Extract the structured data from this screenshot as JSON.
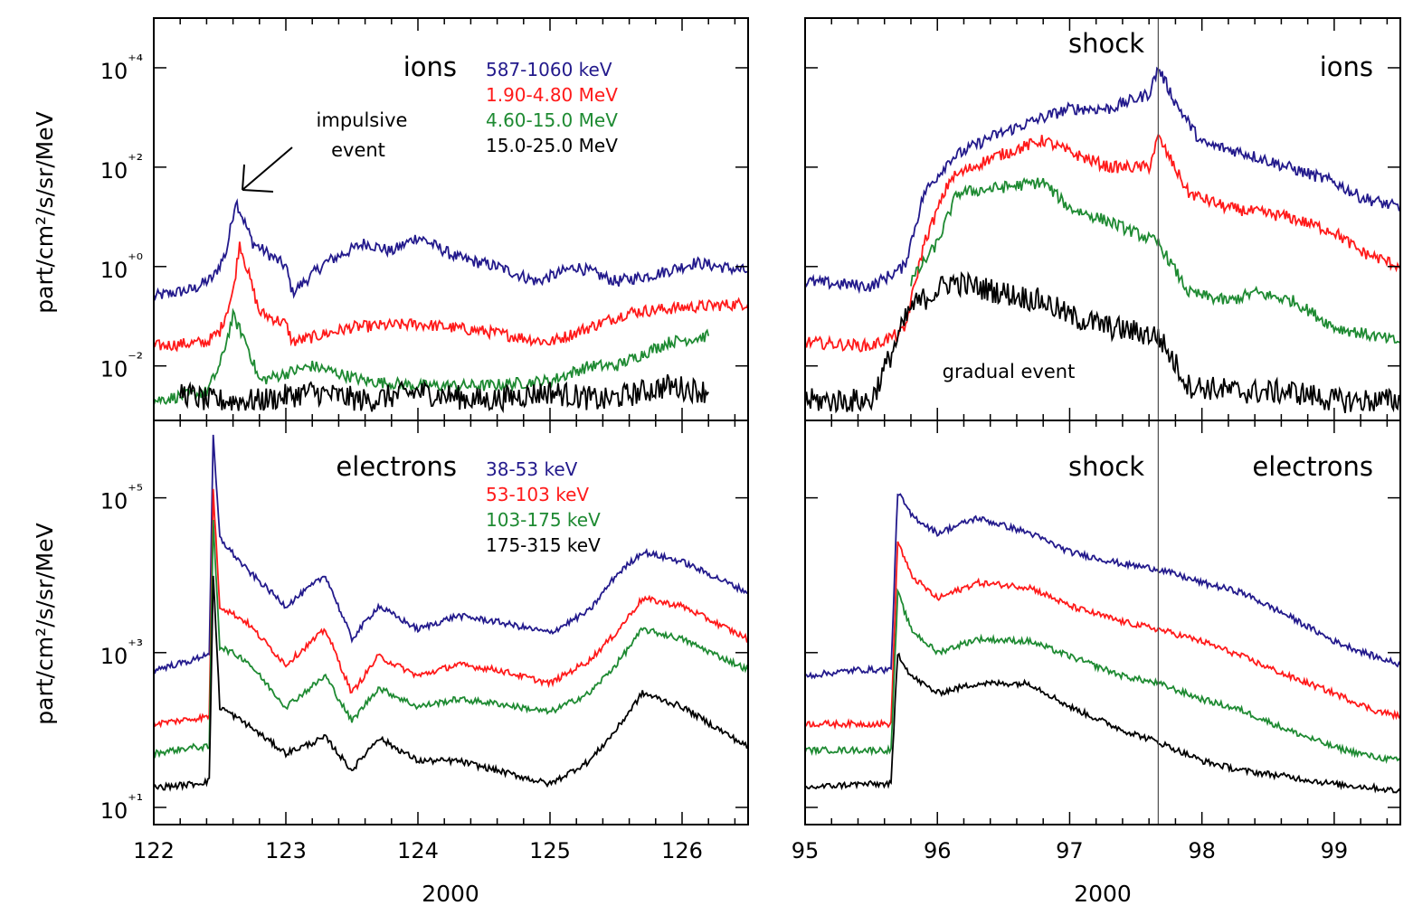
{
  "figure": {
    "y_label": "part/cm²/s/sr/MeV",
    "x_label": "2000"
  },
  "colors": {
    "blue": "#231a8c",
    "red": "#ff1a1a",
    "green": "#1e8a32",
    "black": "#000000"
  },
  "chart_data": [
    {
      "id": "left-ions",
      "type": "line",
      "title": "ions",
      "ylabel": "part/cm²/s/sr/MeV",
      "xlabel": "2000",
      "yscale": "log",
      "xlim": [
        122,
        126.5
      ],
      "ylim": [
        0.0008,
        100000
      ],
      "xticks": [
        122,
        123,
        124,
        125,
        126
      ],
      "yticks": [
        0.01,
        1,
        100,
        10000
      ],
      "ytick_labels": [
        "10⁻²",
        "10⁺⁰",
        "10⁺²",
        "10⁺⁴"
      ],
      "legend": [
        "587-1060 keV",
        "1.90-4.80 MeV",
        "4.60-15.0 MeV",
        "15.0-25.0 MeV"
      ],
      "annotations": [
        {
          "text": "impulsive",
          "x": 122.45,
          "y": 22
        },
        {
          "text": "event",
          "x": 122.45,
          "y": 22
        }
      ],
      "series": [
        {
          "name": "587-1060 keV",
          "color": "blue",
          "x": [
            122,
            122.3,
            122.45,
            122.55,
            122.62,
            122.75,
            123.0,
            123.05,
            123.3,
            123.6,
            123.8,
            124.0,
            124.3,
            124.6,
            124.9,
            125.2,
            125.5,
            125.8,
            126.1,
            126.5
          ],
          "y": [
            0.25,
            0.35,
            0.6,
            2,
            22,
            3,
            1.0,
            0.3,
            1.2,
            3,
            2,
            4,
            1.5,
            1.0,
            0.5,
            1.0,
            0.5,
            0.7,
            1.2,
            0.8
          ]
        },
        {
          "name": "1.90-4.80 MeV",
          "color": "red",
          "x": [
            122,
            122.4,
            122.5,
            122.6,
            122.65,
            122.8,
            123.0,
            123.05,
            123.5,
            124.0,
            124.5,
            125.0,
            125.3,
            125.6,
            126.0,
            126.5
          ],
          "y": [
            0.025,
            0.03,
            0.05,
            0.3,
            3,
            0.12,
            0.07,
            0.03,
            0.06,
            0.07,
            0.05,
            0.03,
            0.06,
            0.12,
            0.15,
            0.18
          ]
        },
        {
          "name": "4.60-15.0 MeV",
          "color": "green",
          "x": [
            122,
            122.4,
            122.5,
            122.6,
            122.7,
            122.8,
            123.2,
            123.6,
            124.0,
            124.5,
            125.0,
            125.3,
            125.5,
            125.9,
            126.2
          ],
          "y": [
            0.002,
            0.003,
            0.01,
            0.1,
            0.03,
            0.005,
            0.01,
            0.005,
            0.004,
            0.004,
            0.005,
            0.01,
            0.01,
            0.03,
            0.04
          ]
        },
        {
          "name": "15.0-25.0 MeV",
          "color": "black",
          "x": [
            122.2,
            122.4,
            122.6,
            122.8,
            123.2,
            123.6,
            124.0,
            124.5,
            125.0,
            125.4,
            125.9,
            126.2
          ],
          "y": [
            0.003,
            0.002,
            0.002,
            0.002,
            0.003,
            0.002,
            0.003,
            0.002,
            0.003,
            0.002,
            0.004,
            0.003
          ]
        }
      ]
    },
    {
      "id": "right-ions",
      "type": "line",
      "title": "ions",
      "xlabel": "2000",
      "yscale": "log",
      "xlim": [
        95,
        99.5
      ],
      "ylim": [
        0.0008,
        100000
      ],
      "xticks": [
        95,
        96,
        97,
        98,
        99
      ],
      "yticks": [
        0.01,
        1,
        100,
        10000
      ],
      "annotations": [
        {
          "text": "shock",
          "x": 97.67
        },
        {
          "text": "gradual event"
        }
      ],
      "shock_x": 97.67,
      "series": [
        {
          "name": "587-1060 keV",
          "color": "blue",
          "x": [
            95,
            95.5,
            95.75,
            95.9,
            96.1,
            96.4,
            96.8,
            97.0,
            97.3,
            97.6,
            97.67,
            97.8,
            98.0,
            98.3,
            98.65,
            99.0,
            99.2,
            99.5
          ],
          "y": [
            0.5,
            0.4,
            1.0,
            30,
            150,
            400,
            1000,
            1500,
            1500,
            3000,
            10000,
            2000,
            300,
            200,
            100,
            50,
            25,
            15
          ]
        },
        {
          "name": "1.90-4.80 MeV",
          "color": "red",
          "x": [
            95,
            95.5,
            95.75,
            95.9,
            96.1,
            96.4,
            96.8,
            97.0,
            97.3,
            97.6,
            97.67,
            97.9,
            98.2,
            98.65,
            99.0,
            99.2,
            99.5
          ],
          "y": [
            0.03,
            0.025,
            0.05,
            3,
            60,
            150,
            350,
            200,
            100,
            100,
            400,
            30,
            15,
            10,
            5,
            2,
            1
          ]
        },
        {
          "name": "4.60-15.0 MeV",
          "color": "green",
          "x": [
            95.8,
            96.0,
            96.15,
            96.8,
            97.0,
            97.3,
            97.67,
            97.9,
            98.2,
            98.4,
            98.7,
            99.0,
            99.3,
            99.5
          ],
          "y": [
            0.5,
            3,
            30,
            50,
            15,
            8,
            3,
            0.3,
            0.2,
            0.3,
            0.2,
            0.06,
            0.04,
            0.03
          ]
        },
        {
          "name": "15.0-25.0 MeV",
          "color": "black",
          "x": [
            95,
            95.5,
            95.8,
            96.1,
            96.8,
            97.0,
            97.3,
            97.67,
            97.9,
            98.3,
            98.7,
            99.0,
            99.3,
            99.5
          ],
          "y": [
            0.002,
            0.002,
            0.15,
            0.5,
            0.2,
            0.1,
            0.06,
            0.04,
            0.004,
            0.003,
            0.003,
            0.002,
            0.002,
            0.002
          ]
        }
      ]
    },
    {
      "id": "left-electrons",
      "type": "line",
      "title": "electrons",
      "ylabel": "part/cm²/s/sr/MeV",
      "xlabel": "2000",
      "yscale": "log",
      "xlim": [
        122,
        126.5
      ],
      "ylim": [
        6,
        1000000
      ],
      "xticks": [
        122,
        123,
        124,
        125,
        126
      ],
      "xtick_labels": [
        "122",
        "123",
        "124",
        "125",
        "126"
      ],
      "yticks": [
        10,
        1000,
        100000
      ],
      "ytick_labels": [
        "10⁺¹",
        "10⁺³",
        "10⁺⁵"
      ],
      "legend": [
        "38-53 keV",
        "53-103 keV",
        "103-175 keV",
        "175-315 keV"
      ],
      "series": [
        {
          "name": "38-53 keV",
          "color": "blue",
          "x": [
            122,
            122.3,
            122.42,
            122.45,
            122.5,
            122.7,
            123.0,
            123.3,
            123.5,
            123.7,
            124.0,
            124.3,
            124.6,
            125.0,
            125.3,
            125.5,
            125.7,
            126.0,
            126.5
          ],
          "y": [
            600,
            800,
            1000,
            600000,
            30000,
            12000,
            4000,
            10000,
            1500,
            4000,
            2000,
            3000,
            2500,
            1800,
            3500,
            10000,
            20000,
            15000,
            6000
          ]
        },
        {
          "name": "53-103 keV",
          "color": "red",
          "x": [
            122,
            122.3,
            122.42,
            122.45,
            122.5,
            122.7,
            123.0,
            123.3,
            123.5,
            123.7,
            124.0,
            124.3,
            124.6,
            125.0,
            125.3,
            125.5,
            125.7,
            126.0,
            126.5
          ],
          "y": [
            120,
            140,
            150,
            120000,
            4000,
            2500,
            700,
            2000,
            300,
            900,
            500,
            700,
            600,
            400,
            800,
            1800,
            5000,
            4000,
            1500
          ]
        },
        {
          "name": "103-175 keV",
          "color": "green",
          "x": [
            122,
            122.3,
            122.42,
            122.45,
            122.5,
            122.7,
            123.0,
            123.3,
            123.5,
            123.7,
            124.0,
            124.3,
            124.6,
            125.0,
            125.3,
            125.5,
            125.7,
            126.0,
            126.5
          ],
          "y": [
            50,
            60,
            60,
            50000,
            1200,
            800,
            200,
            500,
            130,
            350,
            200,
            250,
            220,
            170,
            300,
            700,
            2000,
            1500,
            600
          ]
        },
        {
          "name": "175-315 keV",
          "color": "black",
          "x": [
            122,
            122.3,
            122.42,
            122.45,
            122.5,
            122.7,
            123.0,
            123.3,
            123.5,
            123.7,
            124.0,
            124.3,
            124.6,
            125.0,
            125.3,
            125.5,
            125.7,
            126.0,
            126.5
          ],
          "y": [
            18,
            20,
            22,
            10000,
            200,
            120,
            50,
            80,
            30,
            80,
            40,
            40,
            30,
            20,
            40,
            100,
            300,
            200,
            60
          ]
        }
      ]
    },
    {
      "id": "right-electrons",
      "type": "line",
      "title": "electrons",
      "xlabel": "2000",
      "yscale": "log",
      "xlim": [
        95,
        99.5
      ],
      "ylim": [
        6,
        1000000
      ],
      "xticks": [
        95,
        96,
        97,
        98,
        99
      ],
      "xtick_labels": [
        "95",
        "96",
        "97",
        "98",
        "99"
      ],
      "yticks": [
        10,
        1000,
        100000
      ],
      "annotations": [
        {
          "text": "shock",
          "x": 97.67
        }
      ],
      "shock_x": 97.67,
      "series": [
        {
          "name": "38-53 keV",
          "color": "blue",
          "x": [
            95,
            95.4,
            95.65,
            95.7,
            95.8,
            96.0,
            96.3,
            96.7,
            97.0,
            97.4,
            97.67,
            98.0,
            98.3,
            98.65,
            99.0,
            99.3,
            99.5
          ],
          "y": [
            500,
            600,
            600,
            120000,
            60000,
            35000,
            55000,
            35000,
            20000,
            14000,
            12000,
            8000,
            6000,
            3000,
            1400,
            900,
            700
          ]
        },
        {
          "name": "53-103 keV",
          "color": "red",
          "x": [
            95,
            95.4,
            95.65,
            95.7,
            95.8,
            96.0,
            96.3,
            96.7,
            97.0,
            97.4,
            97.67,
            98.0,
            98.3,
            98.65,
            99.0,
            99.3,
            99.5
          ],
          "y": [
            120,
            120,
            120,
            28000,
            10000,
            5000,
            8000,
            7000,
            4000,
            2500,
            2000,
            1400,
            900,
            500,
            300,
            180,
            150
          ]
        },
        {
          "name": "103-175 keV",
          "color": "green",
          "x": [
            95,
            95.4,
            95.65,
            95.7,
            95.8,
            96.0,
            96.3,
            96.7,
            97.0,
            97.4,
            97.67,
            98.0,
            98.3,
            98.65,
            99.0,
            99.3,
            99.5
          ],
          "y": [
            55,
            55,
            55,
            6000,
            2000,
            1000,
            1500,
            1400,
            900,
            500,
            400,
            250,
            180,
            100,
            60,
            45,
            40
          ]
        },
        {
          "name": "175-315 keV",
          "color": "black",
          "x": [
            95,
            95.4,
            95.65,
            95.7,
            95.8,
            96.0,
            96.3,
            96.7,
            97.0,
            97.4,
            97.67,
            98.0,
            98.3,
            98.65,
            99.0,
            99.3,
            99.5
          ],
          "y": [
            18,
            20,
            20,
            1000,
            500,
            300,
            400,
            400,
            200,
            100,
            70,
            40,
            30,
            25,
            20,
            18,
            16
          ]
        }
      ]
    }
  ]
}
